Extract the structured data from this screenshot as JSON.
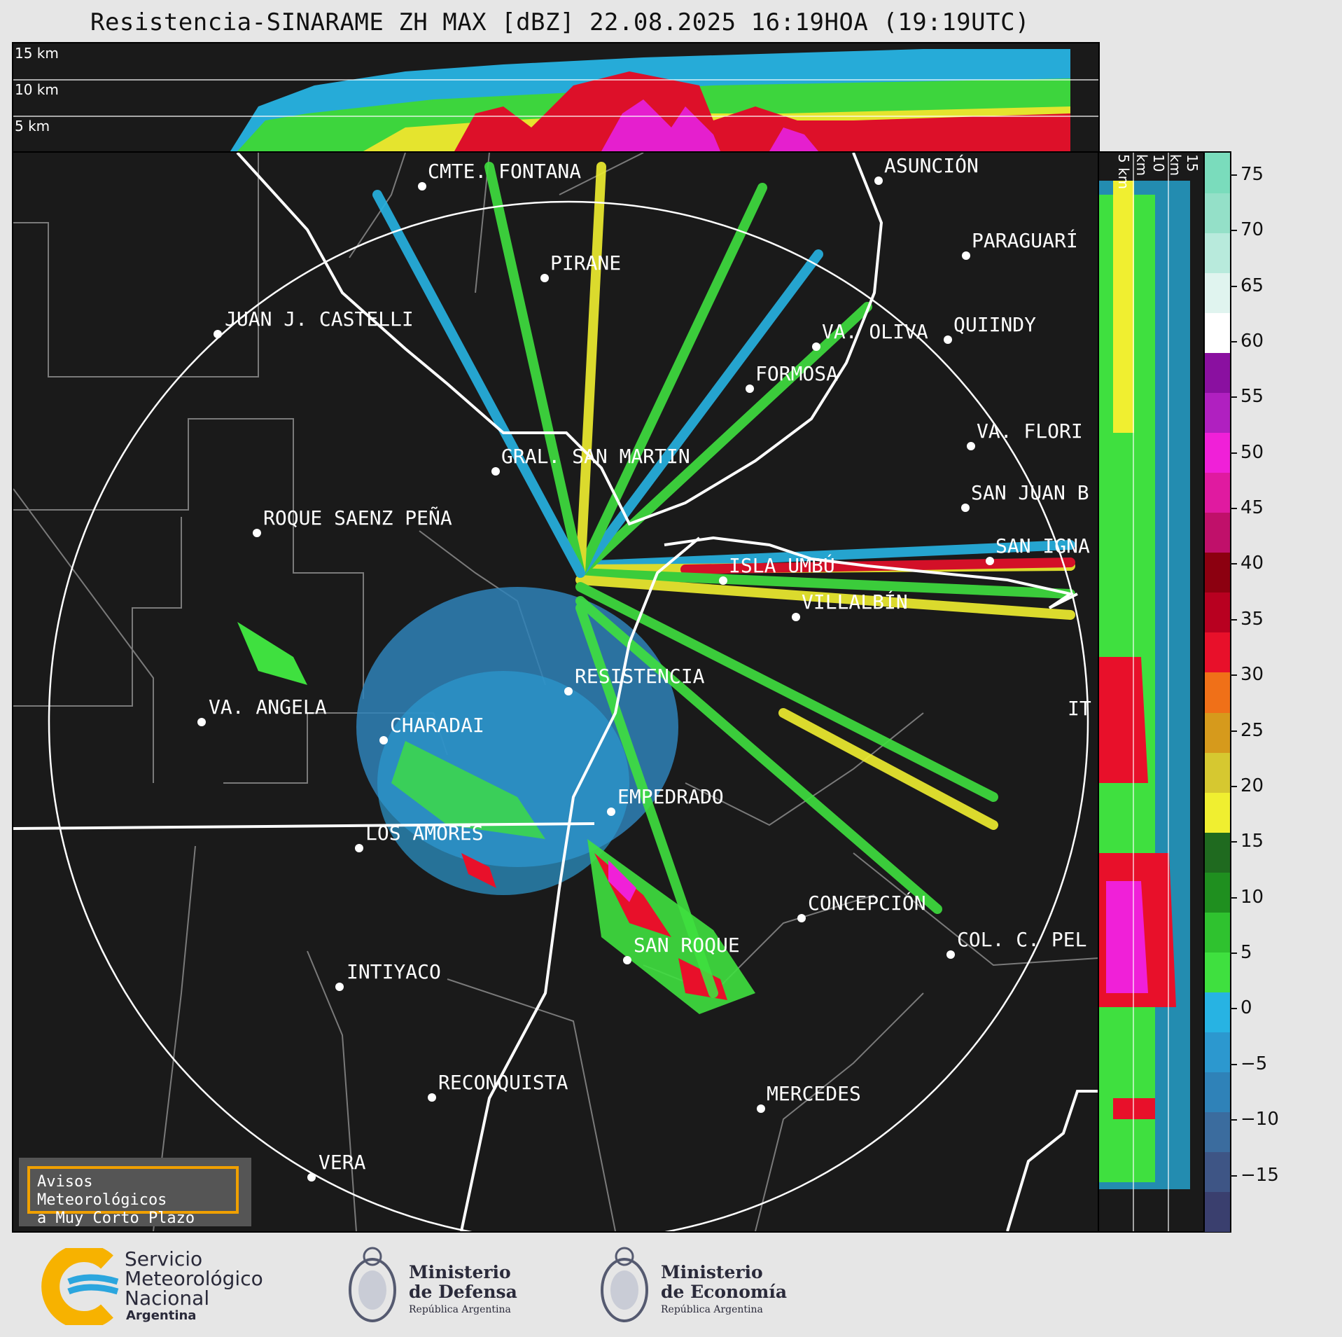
{
  "title": "Resistencia-SINARAME ZH MAX [dBZ] 22.08.2025 16:19HOA (19:19UTC)",
  "top_cross_section": {
    "altitude_labels": [
      "15 km",
      "10 km",
      "5 km"
    ]
  },
  "side_cross_section": {
    "altitude_labels": [
      "5 km",
      "10 km",
      "15 km"
    ]
  },
  "cities": [
    {
      "name": "CMTE. FONTANA"
    },
    {
      "name": "ASUNCIÓN"
    },
    {
      "name": "PIRANE"
    },
    {
      "name": "PARAGUARÍ"
    },
    {
      "name": "JUAN J. CASTELLI"
    },
    {
      "name": "QUIINDY"
    },
    {
      "name": "VA. OLIVA"
    },
    {
      "name": "FORMOSA"
    },
    {
      "name": "VA. FLORI"
    },
    {
      "name": "GRAL. SAN MARTIN"
    },
    {
      "name": "SAN JUAN B"
    },
    {
      "name": "ROQUE SAENZ PEÑA"
    },
    {
      "name": "SAN IGNA"
    },
    {
      "name": "ISLA UMBÚ"
    },
    {
      "name": "VILLALBÍN"
    },
    {
      "name": "RESISTENCIA"
    },
    {
      "name": "VA. ANGELA"
    },
    {
      "name": "CHARADAI"
    },
    {
      "name": "IT"
    },
    {
      "name": "EMPEDRADO"
    },
    {
      "name": "LOS AMORES"
    },
    {
      "name": "CONCEPCIÓN"
    },
    {
      "name": "SAN ROQUE"
    },
    {
      "name": "COL. C. PEL"
    },
    {
      "name": "INTIYACO"
    },
    {
      "name": "RECONQUISTA"
    },
    {
      "name": "MERCEDES"
    },
    {
      "name": "VERA"
    }
  ],
  "colorbar": {
    "unit": "dBZ",
    "ticks": [
      "75",
      "70",
      "65",
      "60",
      "55",
      "50",
      "45",
      "40",
      "35",
      "30",
      "25",
      "20",
      "15",
      "10",
      "5",
      "0",
      "−5",
      "−10",
      "−15"
    ],
    "range": [
      -20,
      77
    ],
    "colors": [
      "#3a3f6e",
      "#3e5585",
      "#3b6c9e",
      "#2f82b8",
      "#2c98cf",
      "#27b3e3",
      "#3fe03f",
      "#2fc22f",
      "#1f8f1f",
      "#1f6a1f",
      "#f0ef30",
      "#d6c830",
      "#d69a1c",
      "#f07018",
      "#e8102a",
      "#b80020",
      "#8c0010",
      "#c0106a",
      "#e01aa0",
      "#f020d8",
      "#b020c0",
      "#8a10a0",
      "#ffffff",
      "#e0f4ef",
      "#b8eadc",
      "#94e0c8",
      "#7adcbc"
    ]
  },
  "aviso": {
    "line1": "Avisos Meteorológicos",
    "line2": "a Muy Corto Plazo"
  },
  "logos": {
    "smn": {
      "line1": "Servicio",
      "line2": "Meteorológico",
      "line3": "Nacional",
      "line4": "Argentina"
    },
    "defensa": {
      "line1": "Ministerio",
      "line2": "de Defensa",
      "line3": "República Argentina"
    },
    "economia": {
      "line1": "Ministerio",
      "line2": "de Economía",
      "line3": "República Argentina"
    }
  }
}
